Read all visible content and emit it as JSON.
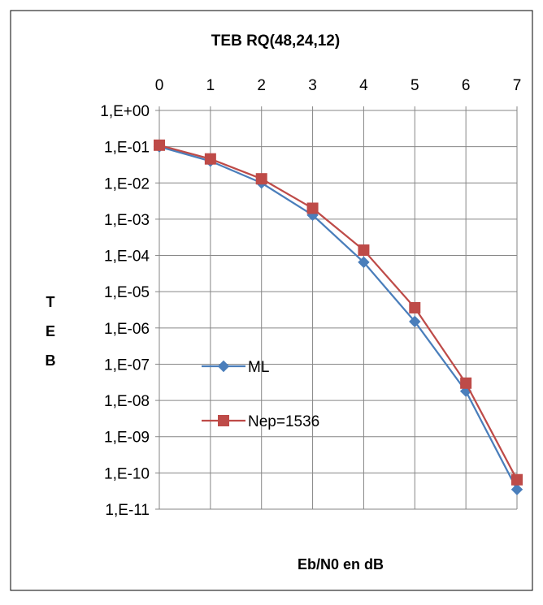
{
  "chart_data": {
    "type": "line",
    "title": "TEB RQ(48,24,12)",
    "xlabel": "Eb/N0 en dB",
    "ylabel": "TEB",
    "y_scale": "log",
    "x_axis_position": "top",
    "grid": true,
    "legend_position": "lower-left-inside",
    "x": [
      0,
      1,
      2,
      3,
      4,
      5,
      6,
      7
    ],
    "xlim": [
      0,
      7
    ],
    "ylim": [
      1e-11,
      1
    ],
    "y_ticks": [
      1,
      0.1,
      0.01,
      0.001,
      0.0001,
      1e-05,
      1e-06,
      1e-07,
      1e-08,
      1e-09,
      1e-10,
      1e-11
    ],
    "y_tick_labels": [
      "1,E+00",
      "1,E-01",
      "1,E-02",
      "1,E-03",
      "1,E-04",
      "1,E-05",
      "1,E-06",
      "1,E-07",
      "1,E-08",
      "1,E-09",
      "1,E-10",
      "1,E-11"
    ],
    "series": [
      {
        "name": "ML",
        "color": "#4a7ebb",
        "marker": "diamond",
        "values": [
          0.1,
          0.04,
          0.01,
          0.0013,
          6.5e-05,
          1.5e-06,
          1.8e-08,
          3.5e-11
        ]
      },
      {
        "name": "Nep=1536",
        "color": "#be4b48",
        "marker": "square",
        "values": [
          0.11,
          0.046,
          0.013,
          0.002,
          0.00014,
          3.6e-06,
          3e-08,
          6.5e-11
        ]
      }
    ]
  }
}
